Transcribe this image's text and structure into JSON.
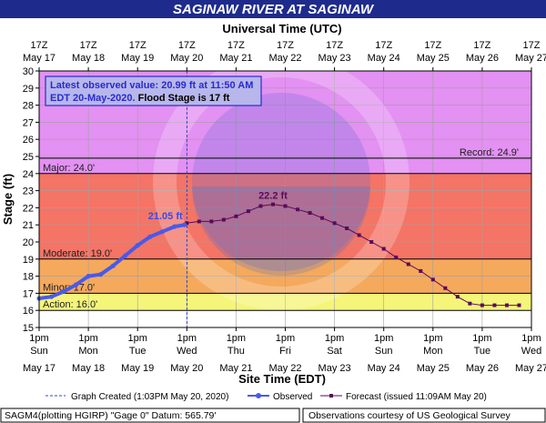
{
  "title": "SAGINAW RIVER AT SAGINAW",
  "top_axis_title": "Universal Time (UTC)",
  "ylabel": "Stage (ft)",
  "xlabel": "Site Time (EDT)",
  "info_box": {
    "line1": "Latest observed value: 20.99 ft at 11:50 AM",
    "line2_date": "EDT 20-May-2020.",
    "line2_flood": " Flood Stage is 17 ft"
  },
  "legend": {
    "created": "Graph Created (1:03PM May 20, 2020)",
    "observed": "Observed",
    "forecast": "Forecast (issued 11:09AM May 20)"
  },
  "footer": {
    "left": "SAGM4(plotting HGIRP) \"Gage 0\" Datum:  565.79'",
    "right": "Observations courtesy of US Geological Survey"
  },
  "colors": {
    "record_band": "#e391f2",
    "major_band": "#f47466",
    "moderate_band": "#f5a95d",
    "minor_band": "#fbd870",
    "action_band": "#f5f57a",
    "below_action": "#ffffff",
    "observed": "#4a5ae8",
    "forecast": "#5a0a5a",
    "created_line": "#3a40c8"
  },
  "chart_data": {
    "type": "line",
    "xlim": [
      "2020-05-17 13:00",
      "2020-05-27 13:00"
    ],
    "ylim": [
      15,
      30
    ],
    "y_ticks": [
      15,
      16,
      17,
      18,
      19,
      20,
      21,
      22,
      23,
      24,
      25,
      26,
      27,
      28,
      29,
      30
    ],
    "x_ticks_top": [
      [
        "17Z",
        "May 17"
      ],
      [
        "17Z",
        "May 18"
      ],
      [
        "17Z",
        "May 19"
      ],
      [
        "17Z",
        "May 20"
      ],
      [
        "17Z",
        "May 21"
      ],
      [
        "17Z",
        "May 22"
      ],
      [
        "17Z",
        "May 23"
      ],
      [
        "17Z",
        "May 24"
      ],
      [
        "17Z",
        "May 25"
      ],
      [
        "17Z",
        "May 26"
      ],
      [
        "17Z",
        "May 27"
      ]
    ],
    "x_ticks_bottom": [
      [
        "1pm",
        "Sun",
        "May 17"
      ],
      [
        "1pm",
        "Mon",
        "May 18"
      ],
      [
        "1pm",
        "Tue",
        "May 19"
      ],
      [
        "1pm",
        "Wed",
        "May 20"
      ],
      [
        "1pm",
        "Thu",
        "May 21"
      ],
      [
        "1pm",
        "Fri",
        "May 22"
      ],
      [
        "1pm",
        "Sat",
        "May 23"
      ],
      [
        "1pm",
        "Sun",
        "May 24"
      ],
      [
        "1pm",
        "Mon",
        "May 25"
      ],
      [
        "1pm",
        "Tue",
        "May 26"
      ],
      [
        "1pm",
        "Wed",
        "May 27"
      ]
    ],
    "stages": [
      {
        "name": "Record",
        "value": 24.9,
        "label": "Record: 24.9'"
      },
      {
        "name": "Major",
        "value": 24.0,
        "label": "Major: 24.0'"
      },
      {
        "name": "Moderate",
        "value": 19.0,
        "label": "Moderate: 19.0'"
      },
      {
        "name": "Minor",
        "value": 17.0,
        "label": "Minor: 17.0'"
      },
      {
        "name": "Action",
        "value": 16.0,
        "label": "Action: 16.0'"
      }
    ],
    "graph_created": "2020-05-20 13:03",
    "observed": {
      "name": "Observed",
      "x": [
        "2020-05-17 13:00",
        "2020-05-17 19:00",
        "2020-05-18 01:00",
        "2020-05-18 07:00",
        "2020-05-18 13:00",
        "2020-05-18 19:00",
        "2020-05-19 01:00",
        "2020-05-19 07:00",
        "2020-05-19 13:00",
        "2020-05-19 19:00",
        "2020-05-20 01:00",
        "2020-05-20 07:00",
        "2020-05-20 11:50"
      ],
      "y": [
        16.7,
        16.8,
        17.1,
        17.5,
        18.0,
        18.1,
        18.6,
        19.2,
        19.8,
        20.3,
        20.6,
        20.9,
        21.0
      ],
      "label": "21.05 ft"
    },
    "forecast": {
      "name": "Forecast",
      "x": [
        "2020-05-20 13:00",
        "2020-05-20 19:00",
        "2020-05-21 01:00",
        "2020-05-21 07:00",
        "2020-05-21 13:00",
        "2020-05-21 19:00",
        "2020-05-22 01:00",
        "2020-05-22 07:00",
        "2020-05-22 13:00",
        "2020-05-22 19:00",
        "2020-05-23 01:00",
        "2020-05-23 07:00",
        "2020-05-23 13:00",
        "2020-05-23 19:00",
        "2020-05-24 01:00",
        "2020-05-24 07:00",
        "2020-05-24 13:00",
        "2020-05-24 19:00",
        "2020-05-25 01:00",
        "2020-05-25 07:00",
        "2020-05-25 13:00",
        "2020-05-25 19:00",
        "2020-05-26 01:00",
        "2020-05-26 07:00",
        "2020-05-26 13:00",
        "2020-05-26 19:00",
        "2020-05-27 01:00",
        "2020-05-27 07:00"
      ],
      "y": [
        21.1,
        21.2,
        21.2,
        21.3,
        21.5,
        21.8,
        22.1,
        22.2,
        22.1,
        21.9,
        21.7,
        21.4,
        21.1,
        20.8,
        20.4,
        20.0,
        19.6,
        19.1,
        18.7,
        18.3,
        17.8,
        17.3,
        16.8,
        16.4,
        16.3,
        16.3,
        16.3,
        16.3
      ],
      "label": "22.2 ft"
    }
  }
}
